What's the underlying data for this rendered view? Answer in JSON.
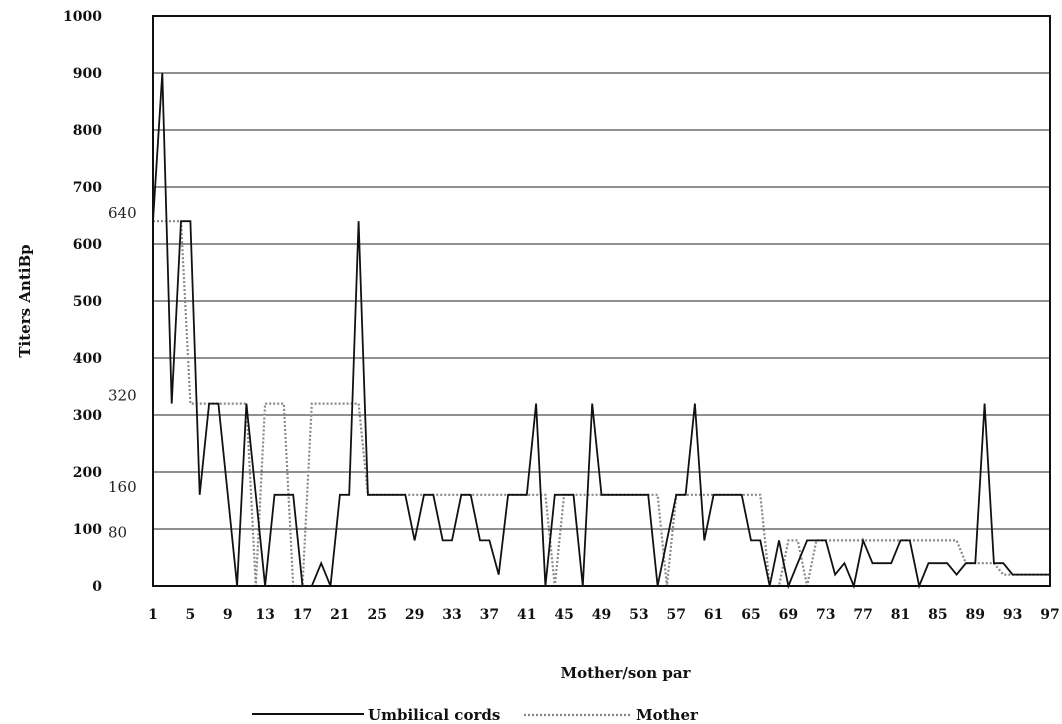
{
  "chart_data": {
    "type": "line",
    "title": "",
    "xlabel": "Mother/son par",
    "ylabel": "Titers AntiBp",
    "xlim": [
      1,
      97
    ],
    "ylim": [
      0,
      1000
    ],
    "grid": "horizontal",
    "legend_position": "bottom",
    "x_ticks": [
      1,
      5,
      9,
      13,
      17,
      21,
      25,
      29,
      33,
      37,
      41,
      45,
      49,
      53,
      57,
      61,
      65,
      69,
      73,
      77,
      81,
      85,
      89,
      93,
      97
    ],
    "y_ticks": [
      0,
      100,
      200,
      300,
      400,
      500,
      600,
      700,
      800,
      900,
      1000
    ],
    "reference_labels": [
      {
        "label": "640",
        "value": 640
      },
      {
        "label": "320",
        "value": 320
      },
      {
        "label": "160",
        "value": 160
      },
      {
        "label": "80",
        "value": 80
      }
    ],
    "series": [
      {
        "name": "Umbilical cords",
        "style": "solid",
        "color": "#111111",
        "points": [
          [
            1,
            640
          ],
          [
            2,
            900
          ],
          [
            3,
            320
          ],
          [
            4,
            640
          ],
          [
            5,
            640
          ],
          [
            6,
            160
          ],
          [
            7,
            320
          ],
          [
            8,
            320
          ],
          [
            9,
            160
          ],
          [
            10,
            0
          ],
          [
            11,
            320
          ],
          [
            12,
            160
          ],
          [
            13,
            0
          ],
          [
            14,
            160
          ],
          [
            15,
            160
          ],
          [
            16,
            160
          ],
          [
            17,
            0
          ],
          [
            18,
            0
          ],
          [
            19,
            40
          ],
          [
            20,
            0
          ],
          [
            21,
            160
          ],
          [
            22,
            160
          ],
          [
            23,
            640
          ],
          [
            24,
            160
          ],
          [
            25,
            160
          ],
          [
            26,
            160
          ],
          [
            27,
            160
          ],
          [
            28,
            160
          ],
          [
            29,
            80
          ],
          [
            30,
            160
          ],
          [
            31,
            160
          ],
          [
            32,
            80
          ],
          [
            33,
            80
          ],
          [
            34,
            160
          ],
          [
            35,
            160
          ],
          [
            36,
            80
          ],
          [
            37,
            80
          ],
          [
            38,
            20
          ],
          [
            39,
            160
          ],
          [
            40,
            160
          ],
          [
            41,
            160
          ],
          [
            42,
            320
          ],
          [
            43,
            0
          ],
          [
            44,
            160
          ],
          [
            45,
            160
          ],
          [
            46,
            160
          ],
          [
            47,
            0
          ],
          [
            48,
            320
          ],
          [
            49,
            160
          ],
          [
            50,
            160
          ],
          [
            51,
            160
          ],
          [
            52,
            160
          ],
          [
            53,
            160
          ],
          [
            54,
            160
          ],
          [
            55,
            0
          ],
          [
            56,
            80
          ],
          [
            57,
            160
          ],
          [
            58,
            160
          ],
          [
            59,
            320
          ],
          [
            60,
            80
          ],
          [
            61,
            160
          ],
          [
            62,
            160
          ],
          [
            63,
            160
          ],
          [
            64,
            160
          ],
          [
            65,
            80
          ],
          [
            66,
            80
          ],
          [
            67,
            0
          ],
          [
            68,
            80
          ],
          [
            69,
            0
          ],
          [
            70,
            40
          ],
          [
            71,
            80
          ],
          [
            72,
            80
          ],
          [
            73,
            80
          ],
          [
            74,
            20
          ],
          [
            75,
            40
          ],
          [
            76,
            0
          ],
          [
            77,
            80
          ],
          [
            78,
            40
          ],
          [
            79,
            40
          ],
          [
            80,
            40
          ],
          [
            81,
            80
          ],
          [
            82,
            80
          ],
          [
            83,
            0
          ],
          [
            84,
            40
          ],
          [
            85,
            40
          ],
          [
            86,
            40
          ],
          [
            87,
            20
          ],
          [
            88,
            40
          ],
          [
            89,
            40
          ],
          [
            90,
            320
          ],
          [
            91,
            40
          ],
          [
            92,
            40
          ],
          [
            93,
            20
          ],
          [
            94,
            20
          ],
          [
            95,
            20
          ],
          [
            96,
            20
          ],
          [
            97,
            20
          ]
        ]
      },
      {
        "name": "Mother",
        "style": "dotted",
        "color": "#888888",
        "points": [
          [
            1,
            640
          ],
          [
            2,
            640
          ],
          [
            3,
            640
          ],
          [
            4,
            640
          ],
          [
            5,
            320
          ],
          [
            6,
            320
          ],
          [
            7,
            320
          ],
          [
            8,
            320
          ],
          [
            9,
            320
          ],
          [
            10,
            320
          ],
          [
            11,
            320
          ],
          [
            12,
            0
          ],
          [
            13,
            320
          ],
          [
            14,
            320
          ],
          [
            15,
            320
          ],
          [
            16,
            0
          ],
          [
            17,
            0
          ],
          [
            18,
            320
          ],
          [
            19,
            320
          ],
          [
            20,
            320
          ],
          [
            21,
            320
          ],
          [
            22,
            320
          ],
          [
            23,
            320
          ],
          [
            24,
            160
          ],
          [
            25,
            160
          ],
          [
            26,
            160
          ],
          [
            27,
            160
          ],
          [
            28,
            160
          ],
          [
            29,
            160
          ],
          [
            30,
            160
          ],
          [
            31,
            160
          ],
          [
            32,
            160
          ],
          [
            33,
            160
          ],
          [
            34,
            160
          ],
          [
            35,
            160
          ],
          [
            36,
            160
          ],
          [
            37,
            160
          ],
          [
            38,
            160
          ],
          [
            39,
            160
          ],
          [
            40,
            160
          ],
          [
            41,
            160
          ],
          [
            42,
            160
          ],
          [
            43,
            160
          ],
          [
            44,
            0
          ],
          [
            45,
            160
          ],
          [
            46,
            160
          ],
          [
            47,
            160
          ],
          [
            48,
            160
          ],
          [
            49,
            160
          ],
          [
            50,
            160
          ],
          [
            51,
            160
          ],
          [
            52,
            160
          ],
          [
            53,
            160
          ],
          [
            54,
            160
          ],
          [
            55,
            160
          ],
          [
            56,
            0
          ],
          [
            57,
            160
          ],
          [
            58,
            160
          ],
          [
            59,
            160
          ],
          [
            60,
            160
          ],
          [
            61,
            160
          ],
          [
            62,
            160
          ],
          [
            63,
            160
          ],
          [
            64,
            160
          ],
          [
            65,
            160
          ],
          [
            66,
            160
          ],
          [
            67,
            0
          ],
          [
            68,
            0
          ],
          [
            69,
            80
          ],
          [
            70,
            80
          ],
          [
            71,
            0
          ],
          [
            72,
            80
          ],
          [
            73,
            80
          ],
          [
            74,
            80
          ],
          [
            75,
            80
          ],
          [
            76,
            80
          ],
          [
            77,
            80
          ],
          [
            78,
            80
          ],
          [
            79,
            80
          ],
          [
            80,
            80
          ],
          [
            81,
            80
          ],
          [
            82,
            80
          ],
          [
            83,
            80
          ],
          [
            84,
            80
          ],
          [
            85,
            80
          ],
          [
            86,
            80
          ],
          [
            87,
            80
          ],
          [
            88,
            40
          ],
          [
            89,
            40
          ],
          [
            90,
            40
          ],
          [
            91,
            40
          ],
          [
            92,
            20
          ],
          [
            93,
            20
          ],
          [
            94,
            20
          ],
          [
            95,
            20
          ],
          [
            96,
            20
          ],
          [
            97,
            20
          ]
        ]
      }
    ]
  }
}
